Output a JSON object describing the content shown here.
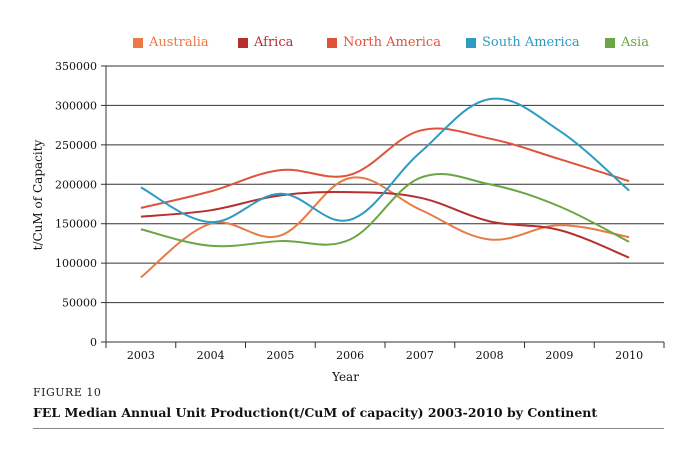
{
  "chart_data": {
    "type": "line",
    "title": "",
    "xlabel": "Year",
    "ylabel": "t/CuM of Capacity",
    "categories": [
      "2003",
      "2004",
      "2005",
      "2006",
      "2007",
      "2008",
      "2009",
      "2010"
    ],
    "ylim": [
      0,
      350000
    ],
    "yticks": [
      "0",
      "50000",
      "100000",
      "150000",
      "200000",
      "250000",
      "300000",
      "350000"
    ],
    "grid": "horizontal",
    "legend_position": "top",
    "series": [
      {
        "name": "Australia",
        "color": "#EA7A45",
        "values": [
          82000,
          150000,
          135000,
          208000,
          168000,
          130000,
          148000,
          133000
        ]
      },
      {
        "name": "Africa",
        "color": "#B5302E",
        "values": [
          159000,
          167000,
          186000,
          190000,
          183000,
          153000,
          142000,
          107000
        ]
      },
      {
        "name": "North America",
        "color": "#E0533A",
        "values": [
          170000,
          191000,
          218000,
          212000,
          268000,
          258000,
          232000,
          204000
        ]
      },
      {
        "name": "South America",
        "color": "#2E9BC2",
        "values": [
          196000,
          152000,
          188000,
          155000,
          240000,
          308000,
          268000,
          192000
        ]
      },
      {
        "name": "Asia",
        "color": "#6BA544",
        "values": [
          143000,
          122000,
          128000,
          130000,
          208000,
          200000,
          172000,
          127000
        ]
      }
    ]
  },
  "caption": {
    "figure_label": "FIGURE 10",
    "text": "FEL Median Annual Unit Production(t/CuM of capacity) 2003-2010 by Continent"
  }
}
